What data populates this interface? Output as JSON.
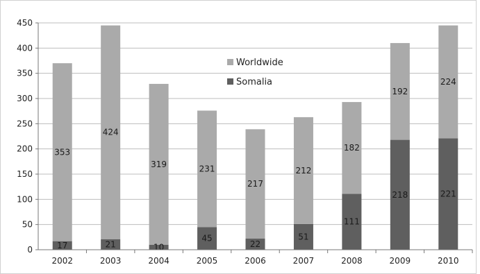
{
  "chart_data": {
    "type": "bar",
    "stacked": true,
    "categories": [
      "2002",
      "2003",
      "2004",
      "2005",
      "2006",
      "2007",
      "2008",
      "2009",
      "2010"
    ],
    "series": [
      {
        "name": "Somalia",
        "color": "#5f5f5f",
        "values": [
          17,
          21,
          10,
          45,
          22,
          51,
          111,
          218,
          221
        ]
      },
      {
        "name": "Worldwide",
        "color": "#aaaaaa",
        "values": [
          353,
          424,
          319,
          231,
          217,
          212,
          182,
          192,
          224
        ]
      }
    ],
    "yticks": [
      "0",
      "50",
      "100",
      "150",
      "200",
      "250",
      "300",
      "350",
      "400",
      "450"
    ],
    "ylim": [
      0,
      450
    ],
    "grid": true,
    "legend_position": "top-center",
    "legend": [
      "Worldwide",
      "Somalia"
    ],
    "title": "",
    "xlabel": "",
    "ylabel": ""
  }
}
